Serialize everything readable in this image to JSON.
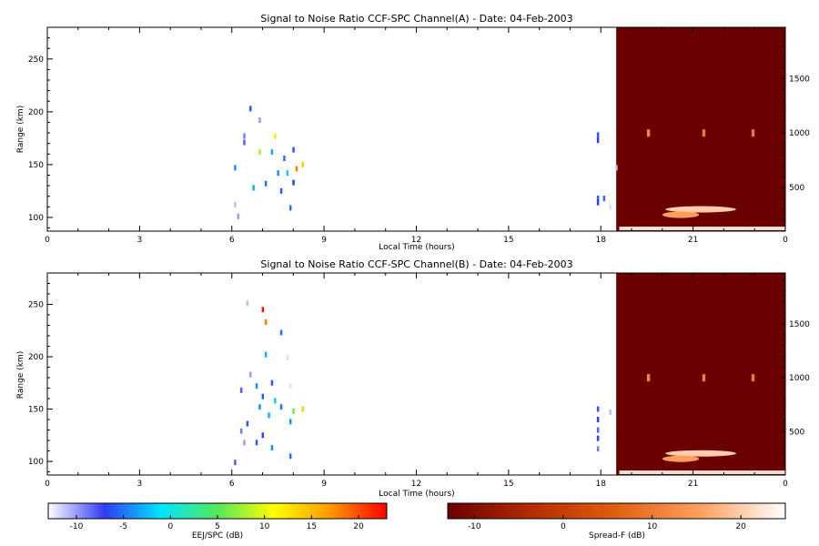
{
  "chart_data": [
    {
      "type": "heatmap",
      "title": "Signal to Noise Ratio CCF-SPC Channel(A) - Date: 04-Feb-2003",
      "xlabel": "Local Time (hours)",
      "ylabel": "Range (km)",
      "x_ticks": [
        "0",
        "3",
        "6",
        "9",
        "12",
        "15",
        "18",
        "21",
        "0"
      ],
      "xlim": [
        0,
        24
      ],
      "y_ticks": [
        100,
        150,
        200,
        250
      ],
      "ylim": [
        87,
        280
      ],
      "right_y_ticks": [
        500,
        1000,
        1500
      ],
      "right_ylim": [
        100,
        1970
      ],
      "spread_f_start_hour": 18.5,
      "eej_points": [
        {
          "t": 6.4,
          "r": 177,
          "v": -9
        },
        {
          "t": 6.4,
          "r": 171,
          "v": -8
        },
        {
          "t": 6.6,
          "r": 203,
          "v": -6
        },
        {
          "t": 6.9,
          "r": 192,
          "v": -10
        },
        {
          "t": 6.1,
          "r": 147,
          "v": -4
        },
        {
          "t": 6.9,
          "r": 162,
          "v": 8
        },
        {
          "t": 7.3,
          "r": 162,
          "v": -3
        },
        {
          "t": 7.4,
          "r": 177,
          "v": 12
        },
        {
          "t": 7.7,
          "r": 156,
          "v": -5
        },
        {
          "t": 7.8,
          "r": 142,
          "v": -2
        },
        {
          "t": 8.0,
          "r": 164,
          "v": -6
        },
        {
          "t": 8.1,
          "r": 146,
          "v": 18
        },
        {
          "t": 8.3,
          "r": 150,
          "v": 14
        },
        {
          "t": 8.0,
          "r": 133,
          "v": -7
        },
        {
          "t": 7.1,
          "r": 132,
          "v": -5
        },
        {
          "t": 7.5,
          "r": 142,
          "v": -4
        },
        {
          "t": 6.7,
          "r": 128,
          "v": -3
        },
        {
          "t": 7.6,
          "r": 125,
          "v": -6
        },
        {
          "t": 7.9,
          "r": 109,
          "v": -5
        },
        {
          "t": 6.1,
          "r": 112,
          "v": -11
        },
        {
          "t": 6.2,
          "r": 101,
          "v": -10
        },
        {
          "t": 17.9,
          "r": 178,
          "v": -6
        },
        {
          "t": 17.9,
          "r": 173,
          "v": -7
        },
        {
          "t": 17.9,
          "r": 118,
          "v": -6
        },
        {
          "t": 18.1,
          "r": 118,
          "v": -8
        },
        {
          "t": 17.9,
          "r": 114,
          "v": -7
        },
        {
          "t": 18.3,
          "r": 110,
          "v": -12
        },
        {
          "t": 18.5,
          "r": 147,
          "v": -11
        }
      ],
      "spread_f_features": [
        {
          "t_start": 20.1,
          "t_end": 22.4,
          "r": 300,
          "v": 20
        },
        {
          "t_start": 18.6,
          "t_end": 24,
          "r": 150,
          "v": 24
        },
        {
          "t_start": 20.0,
          "t_end": 21.2,
          "r": 250,
          "v": 15
        },
        {
          "t_start": 19.5,
          "t_end": 19.6,
          "r": 1000,
          "v": 12
        },
        {
          "t_start": 21.3,
          "t_end": 21.4,
          "r": 1000,
          "v": 10
        },
        {
          "t_start": 22.9,
          "t_end": 23.0,
          "r": 1000,
          "v": 10
        }
      ]
    },
    {
      "type": "heatmap",
      "title": "Signal to Noise Ratio CCF-SPC Channel(B) - Date: 04-Feb-2003",
      "xlabel": "Local Time (hours)",
      "ylabel": "Range (km)",
      "x_ticks": [
        "0",
        "3",
        "6",
        "9",
        "12",
        "15",
        "18",
        "21",
        "0"
      ],
      "xlim": [
        0,
        24
      ],
      "y_ticks": [
        100,
        150,
        200,
        250
      ],
      "ylim": [
        87,
        280
      ],
      "right_y_ticks": [
        500,
        1000,
        1500
      ],
      "right_ylim": [
        100,
        1970
      ],
      "spread_f_start_hour": 18.5,
      "eej_points": [
        {
          "t": 6.5,
          "r": 251,
          "v": -11
        },
        {
          "t": 7.0,
          "r": 245,
          "v": 22
        },
        {
          "t": 7.1,
          "r": 233,
          "v": 18
        },
        {
          "t": 7.6,
          "r": 223,
          "v": -5
        },
        {
          "t": 7.1,
          "r": 202,
          "v": -3
        },
        {
          "t": 7.8,
          "r": 199,
          "v": -12
        },
        {
          "t": 6.6,
          "r": 183,
          "v": -10
        },
        {
          "t": 6.8,
          "r": 172,
          "v": -4
        },
        {
          "t": 7.3,
          "r": 175,
          "v": -6
        },
        {
          "t": 7.9,
          "r": 172,
          "v": -12
        },
        {
          "t": 6.3,
          "r": 168,
          "v": -8
        },
        {
          "t": 7.0,
          "r": 162,
          "v": -6
        },
        {
          "t": 6.9,
          "r": 152,
          "v": -4
        },
        {
          "t": 7.4,
          "r": 158,
          "v": -2
        },
        {
          "t": 7.6,
          "r": 152,
          "v": -5
        },
        {
          "t": 7.2,
          "r": 144,
          "v": -3
        },
        {
          "t": 8.0,
          "r": 148,
          "v": 6
        },
        {
          "t": 8.3,
          "r": 150,
          "v": 14
        },
        {
          "t": 7.9,
          "r": 138,
          "v": -4
        },
        {
          "t": 6.5,
          "r": 136,
          "v": -6
        },
        {
          "t": 6.3,
          "r": 129,
          "v": -9
        },
        {
          "t": 7.0,
          "r": 125,
          "v": -7
        },
        {
          "t": 6.4,
          "r": 118,
          "v": -10
        },
        {
          "t": 7.3,
          "r": 113,
          "v": -4
        },
        {
          "t": 6.8,
          "r": 118,
          "v": -6
        },
        {
          "t": 7.9,
          "r": 105,
          "v": -5
        },
        {
          "t": 6.1,
          "r": 99,
          "v": -8
        },
        {
          "t": 17.9,
          "r": 150,
          "v": -6
        },
        {
          "t": 17.9,
          "r": 140,
          "v": -7
        },
        {
          "t": 17.9,
          "r": 130,
          "v": -8
        },
        {
          "t": 17.9,
          "r": 122,
          "v": -7
        },
        {
          "t": 17.9,
          "r": 112,
          "v": -9
        },
        {
          "t": 18.3,
          "r": 147,
          "v": -11
        }
      ],
      "spread_f_features": [
        {
          "t_start": 20.1,
          "t_end": 22.4,
          "r": 300,
          "v": 20
        },
        {
          "t_start": 18.6,
          "t_end": 24,
          "r": 150,
          "v": 24
        },
        {
          "t_start": 20.0,
          "t_end": 21.2,
          "r": 250,
          "v": 15
        },
        {
          "t_start": 19.5,
          "t_end": 19.6,
          "r": 1000,
          "v": 12
        },
        {
          "t_start": 21.3,
          "t_end": 21.4,
          "r": 1000,
          "v": 10
        },
        {
          "t_start": 22.9,
          "t_end": 23.0,
          "r": 1000,
          "v": 10
        }
      ]
    }
  ],
  "colorbars": [
    {
      "label": "EEJ/SPC (dB)",
      "ticks": [
        -10,
        -5,
        0,
        5,
        10,
        15,
        20
      ],
      "range": [
        -13,
        23
      ],
      "colors": [
        "#ffffff",
        "#2f3cf5",
        "#00e6ff",
        "#53e85a",
        "#ffff00",
        "#ff9900",
        "#ff0000"
      ]
    },
    {
      "label": "Spread-F (dB)",
      "ticks": [
        -10,
        0,
        10,
        20
      ],
      "range": [
        -13,
        25
      ],
      "colors": [
        "#6b0000",
        "#b52c00",
        "#e06010",
        "#ffa060",
        "#ffffff"
      ]
    }
  ]
}
